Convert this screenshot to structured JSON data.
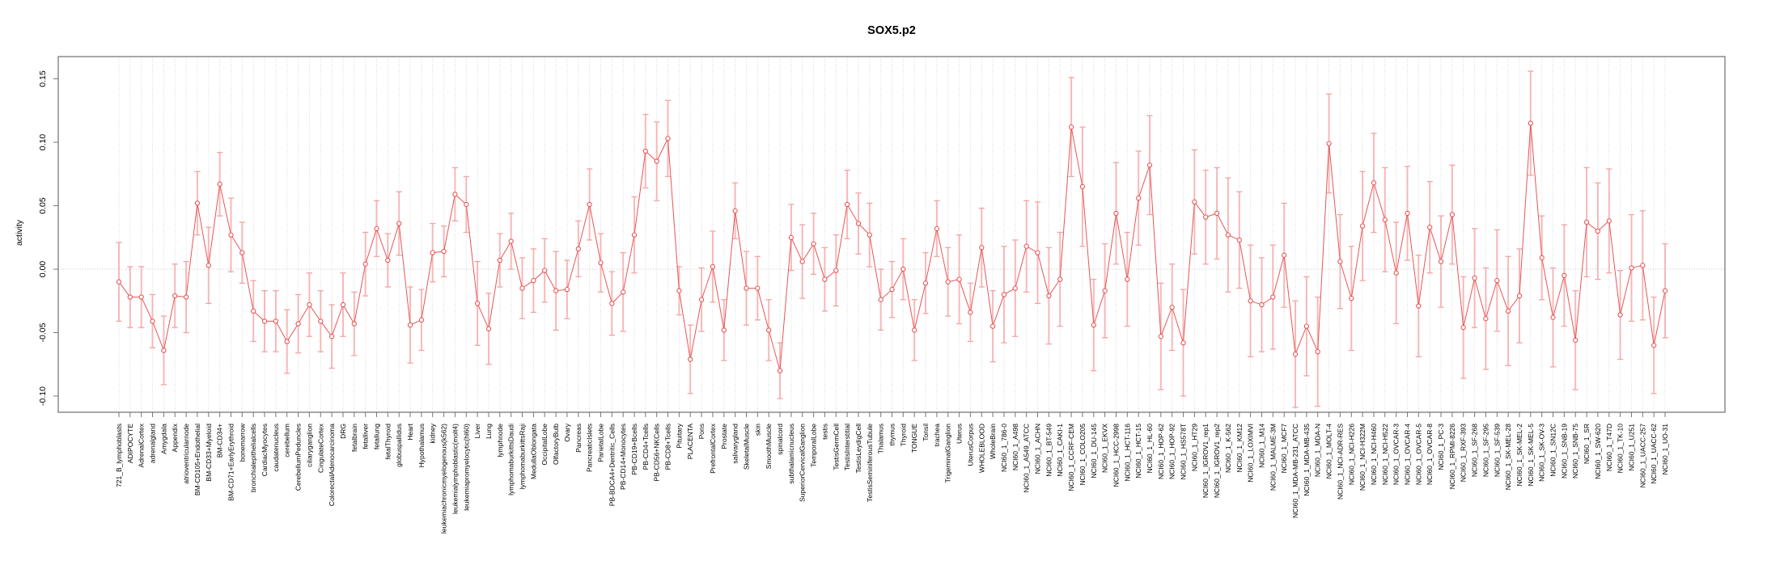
{
  "chart_data": {
    "type": "line",
    "title": "SOX5.p2",
    "ylabel": "activity",
    "xlabel": "",
    "legend": "none",
    "grid": "vertical dotted gridline per sample; dotted horizontal line at 0",
    "ylim": [
      -0.115,
      0.16
    ],
    "yticks": [
      0.15,
      0.1,
      0.05,
      0.0,
      -0.05,
      -0.1
    ],
    "ytick_labels": [
      "0.15",
      "0.10",
      "0.05",
      "0.00",
      "-0.05",
      "-0.10"
    ],
    "point_color": "#e85555",
    "errorbar_color": "#f5a3a3",
    "box_color": "#8c8c8c",
    "gridline_color": "#d9d9d9",
    "categories": [
      "721_B_lymphoblasts",
      "ADIPOCYTE",
      "AdrenalCortex",
      "adrenalgland",
      "Amygdala",
      "Appendix",
      "atrioventricularnode",
      "BM-CD105+Endothelial",
      "BM-CD33+Myeloid",
      "BM-CD34+",
      "BM-CD71+EarlyErythroid",
      "bonemarrow",
      "bronchialepithelialcells",
      "CardiacMyocytes",
      "caudatenucleus",
      "cerebellum",
      "CerebellumPeduncles",
      "ciliaryganglion",
      "CingulateCortex",
      "ColorectalAdenocarcinoma",
      "DRG",
      "fetalbrain",
      "fetalliver",
      "fetallung",
      "fetalThyroid",
      "globuspallidus",
      "Heart",
      "Hypothalamus",
      "kidney",
      "leukemiachronicmyelogenous(k562)",
      "leukemialymphoblastic(molt4)",
      "leukemiapromyelocytic(hl60)",
      "Liver",
      "Lung",
      "lymphnode",
      "lymphomaburkittsDaudi",
      "lymphomaburkittsRaji",
      "MedullaOblongata",
      "OccipitalLobe",
      "OlfactoryBulb",
      "Ovary",
      "Pancreas",
      "PancreaticIslets",
      "ParietalLobe",
      "PB-BDCA4+Dentritic_Cells",
      "PB-CD14+Monocytes",
      "PB-CD19+Bcells",
      "PB-CD4+Tcells",
      "PB-CD56+NKCells",
      "PB-CD8+Tcells",
      "Pituitary",
      "PLACENTA",
      "Pons",
      "PrefrontalCortex",
      "Prostate",
      "salivarygland",
      "SkeletalMuscle",
      "skin",
      "SmoothMuscle",
      "spinalcord",
      "subthalamicnucleus",
      "SuperiorCervicalGanglion",
      "TemporalLobe",
      "testis",
      "TestisGermCell",
      "TestisInterstitial",
      "TestisLeydigCell",
      "TestisSeminiferousTubule",
      "Thalamus",
      "thymus",
      "Thyroid",
      "TONGUE",
      "Tonsil",
      "trachea",
      "TrigeminalGanglion",
      "Uterus",
      "UterusCorpus",
      "WHOLEBLOOD",
      "WholeBrain",
      "NCI60_1_786-0",
      "NCI60_1_A498",
      "NCI60_1_A549_ATCC",
      "NCI60_1_ACHN",
      "NCI60_1_BT-549",
      "NCI60_1_CAKI-1",
      "NCI60_1_CCRF-CEM",
      "NCI60_1_COLO205",
      "NCI60_1_DU-145",
      "NCI60_1_EKVX",
      "NCI60_1_HCC-2998",
      "NCI60_1_HCT-116",
      "NCI60_1_HCT-15",
      "NCI60_1_HL-60",
      "NCI60_1_HOP-62",
      "NCI60_1_HOP-92",
      "NCI60_1_HS578T",
      "NCI60_1_HT29",
      "NCI60_1_IGROV1_rep1",
      "NCI60_1_IGROV1_rep2",
      "NCI60_1_K-562",
      "NCI60_1_KM12",
      "NCI60_1_LOXIMVI",
      "NCI60_1_M14",
      "NCI60_1_MALME-3M",
      "NCI60_1_MCF7",
      "NCI60_1_MDA-MB-231_ATCC",
      "NCI60_1_MDA-MB-435",
      "NCI60_1_MDA-N",
      "NCI60_1_MOLT-4",
      "NCI60_1_NCI-ADR-RES",
      "NCI60_1_NCI-H226",
      "NCI60_1_NCI-H322M",
      "NCI60_1_NCI-H460",
      "NCI60_1_NCI-H522",
      "NCI60_1_OVCAR-3",
      "NCI60_1_OVCAR-4",
      "NCI60_1_OVCAR-5",
      "NCI60_1_OVCAR-8",
      "NCI60_1_PC-3",
      "NCI60_1_RPMI-8226",
      "NCI60_1_RXF-393",
      "NCI60_1_SF-268",
      "NCI60_1_SF-295",
      "NCI60_1_SF-539",
      "NCI60_1_SK-MEL-28",
      "NCI60_1_SK-MEL-2",
      "NCI60_1_SK-MEL-5",
      "NCI60_1_SK-OV-3",
      "NCI60_1_SN12C",
      "NCI60_1_SNB-19",
      "NCI60_1_SNB-75",
      "NCI60_1_SR",
      "NCI60_1_SW-620",
      "NCI60_1_T47D",
      "NCI60_1_TK-10",
      "NCI60_1_U251",
      "NCI60_1_UACC-257",
      "NCI60_1_UACC-62",
      "NCI60_1_UO-31"
    ],
    "series": [
      {
        "name": "activity",
        "values": [
          -0.01,
          -0.022,
          -0.022,
          -0.041,
          -0.064,
          -0.021,
          -0.022,
          0.052,
          0.003,
          0.067,
          0.027,
          0.013,
          -0.033,
          -0.041,
          -0.041,
          -0.057,
          -0.043,
          -0.028,
          -0.041,
          -0.053,
          -0.028,
          -0.043,
          0.004,
          0.032,
          0.007,
          0.036,
          -0.044,
          -0.04,
          0.013,
          0.014,
          0.059,
          0.051,
          -0.027,
          -0.047,
          0.007,
          0.022,
          -0.015,
          -0.009,
          -0.001,
          -0.017,
          -0.016,
          0.016,
          0.051,
          0.005,
          -0.027,
          -0.018,
          0.027,
          0.093,
          0.085,
          0.103,
          -0.017,
          -0.071,
          -0.024,
          0.002,
          -0.048,
          0.046,
          -0.015,
          -0.015,
          -0.048,
          -0.08,
          0.025,
          0.006,
          0.02,
          -0.008,
          -0.001,
          0.051,
          0.036,
          0.027,
          -0.024,
          -0.016,
          0.0,
          -0.048,
          -0.011,
          0.032,
          -0.01,
          -0.008,
          -0.034,
          0.017,
          -0.045,
          -0.02,
          -0.015,
          0.018,
          0.013,
          -0.021,
          -0.008,
          0.112,
          0.065,
          -0.044,
          -0.017,
          0.044,
          -0.008,
          0.056,
          0.082,
          -0.053,
          -0.03,
          -0.058,
          0.053,
          0.041,
          0.044,
          0.027,
          0.023,
          -0.025,
          -0.028,
          -0.022,
          0.011,
          -0.067,
          -0.045,
          -0.065,
          0.099,
          0.006,
          -0.023,
          0.034,
          0.068,
          0.039,
          -0.003,
          0.044,
          -0.029,
          0.033,
          0.006,
          0.043,
          -0.046,
          -0.007,
          -0.039,
          -0.009,
          -0.033,
          -0.021,
          0.115,
          0.009,
          -0.038,
          -0.005,
          -0.056,
          0.037,
          0.03,
          0.038,
          -0.036,
          0.001,
          0.003,
          -0.06,
          -0.017
        ],
        "errors": [
          0.031,
          0.024,
          0.024,
          0.021,
          0.027,
          0.025,
          0.028,
          0.025,
          0.03,
          0.025,
          0.029,
          0.024,
          0.024,
          0.024,
          0.024,
          0.025,
          0.023,
          0.025,
          0.024,
          0.025,
          0.025,
          0.025,
          0.025,
          0.022,
          0.021,
          0.025,
          0.03,
          0.024,
          0.023,
          0.02,
          0.021,
          0.022,
          0.033,
          0.028,
          0.021,
          0.022,
          0.024,
          0.025,
          0.025,
          0.031,
          0.023,
          0.022,
          0.028,
          0.023,
          0.025,
          0.031,
          0.03,
          0.029,
          0.031,
          0.03,
          0.019,
          0.027,
          0.025,
          0.028,
          0.024,
          0.022,
          0.029,
          0.025,
          0.024,
          0.022,
          0.026,
          0.029,
          0.024,
          0.025,
          0.028,
          0.027,
          0.024,
          0.025,
          0.024,
          0.022,
          0.024,
          0.024,
          0.024,
          0.022,
          0.027,
          0.035,
          0.023,
          0.031,
          0.028,
          0.038,
          0.038,
          0.036,
          0.04,
          0.038,
          0.037,
          0.039,
          0.047,
          0.036,
          0.037,
          0.04,
          0.037,
          0.037,
          0.039,
          0.042,
          0.034,
          0.042,
          0.041,
          0.037,
          0.036,
          0.045,
          0.038,
          0.044,
          0.037,
          0.041,
          0.041,
          0.042,
          0.039,
          0.043,
          0.039,
          0.037,
          0.041,
          0.043,
          0.039,
          0.041,
          0.04,
          0.037,
          0.04,
          0.036,
          0.036,
          0.039,
          0.04,
          0.039,
          0.04,
          0.04,
          0.043,
          0.037,
          0.041,
          0.033,
          0.039,
          0.04,
          0.039,
          0.043,
          0.038,
          0.041,
          0.035,
          0.042,
          0.043,
          0.038,
          0.037
        ]
      }
    ]
  }
}
